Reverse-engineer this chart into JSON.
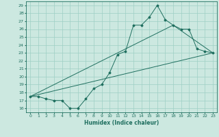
{
  "xlabel": "Humidex (Indice chaleur)",
  "ylabel": "",
  "background_color": "#cce8e0",
  "grid_color": "#9ecfc4",
  "line_color": "#1e6e5e",
  "xlim": [
    -0.5,
    23.5
  ],
  "ylim": [
    15.5,
    29.5
  ],
  "xticks": [
    0,
    1,
    2,
    3,
    4,
    5,
    6,
    7,
    8,
    9,
    10,
    11,
    12,
    13,
    14,
    15,
    16,
    17,
    18,
    19,
    20,
    21,
    22,
    23
  ],
  "yticks": [
    16,
    17,
    18,
    19,
    20,
    21,
    22,
    23,
    24,
    25,
    26,
    27,
    28,
    29
  ],
  "line1_x": [
    0,
    1,
    2,
    3,
    4,
    5,
    6,
    7,
    8,
    9,
    10,
    11,
    12,
    13,
    14,
    15,
    16,
    17,
    18,
    19,
    20,
    21,
    22,
    23
  ],
  "line1_y": [
    17.5,
    17.5,
    17.2,
    17.0,
    17.0,
    16.0,
    16.0,
    17.2,
    18.5,
    19.0,
    20.5,
    22.8,
    23.2,
    26.5,
    26.5,
    27.5,
    29.0,
    27.2,
    26.5,
    26.0,
    26.0,
    23.5,
    23.2,
    23.0
  ],
  "line2_x": [
    0,
    23
  ],
  "line2_y": [
    17.5,
    23.0
  ],
  "line3_x": [
    0,
    18,
    23
  ],
  "line3_y": [
    17.5,
    26.5,
    23.0
  ]
}
